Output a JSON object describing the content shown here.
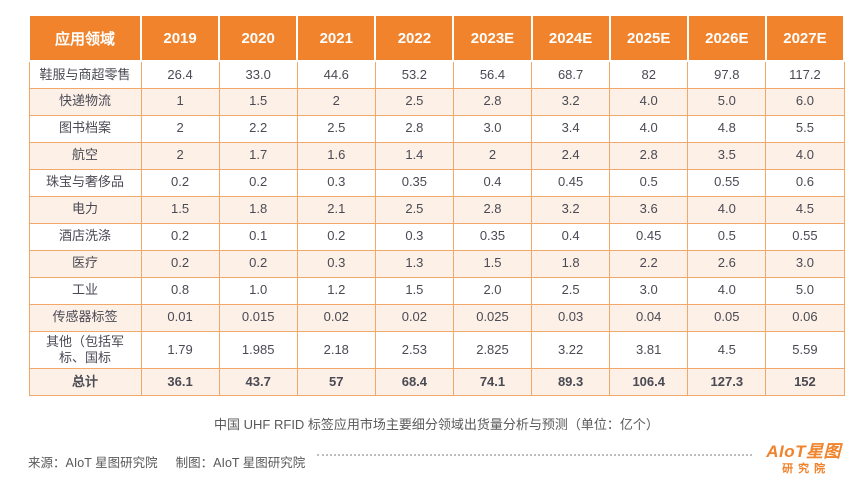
{
  "colors": {
    "header_orange": "#F0832C",
    "cell_border_orange": "#F2A76B",
    "alt_row_pink": "#FCF0E7",
    "cell_text": "#4A4A54",
    "logo_orange": "#F0832C"
  },
  "chart_data": {
    "type": "table",
    "title": "中国 UHF RFID 标签应用市场主要细分领域出货量分析与预测（单位：亿个）",
    "unit": "亿个",
    "columns": [
      "应用领域",
      "2019",
      "2020",
      "2021",
      "2022",
      "2023E",
      "2024E",
      "2025E",
      "2026E",
      "2027E"
    ],
    "rows": [
      {
        "label": "鞋服与商超零售",
        "values": [
          "26.4",
          "33.0",
          "44.6",
          "53.2",
          "56.4",
          "68.7",
          "82",
          "97.8",
          "117.2"
        ],
        "bold": false
      },
      {
        "label": "快递物流",
        "values": [
          "1",
          "1.5",
          "2",
          "2.5",
          "2.8",
          "3.2",
          "4.0",
          "5.0",
          "6.0"
        ],
        "bold": false
      },
      {
        "label": "图书档案",
        "values": [
          "2",
          "2.2",
          "2.5",
          "2.8",
          "3.0",
          "3.4",
          "4.0",
          "4.8",
          "5.5"
        ],
        "bold": false
      },
      {
        "label": "航空",
        "values": [
          "2",
          "1.7",
          "1.6",
          "1.4",
          "2",
          "2.4",
          "2.8",
          "3.5",
          "4.0"
        ],
        "bold": false
      },
      {
        "label": "珠宝与奢侈品",
        "values": [
          "0.2",
          "0.2",
          "0.3",
          "0.35",
          "0.4",
          "0.45",
          "0.5",
          "0.55",
          "0.6"
        ],
        "bold": false
      },
      {
        "label": "电力",
        "values": [
          "1.5",
          "1.8",
          "2.1",
          "2.5",
          "2.8",
          "3.2",
          "3.6",
          "4.0",
          "4.5"
        ],
        "bold": false
      },
      {
        "label": "酒店洗涤",
        "values": [
          "0.2",
          "0.1",
          "0.2",
          "0.3",
          "0.35",
          "0.4",
          "0.45",
          "0.5",
          "0.55"
        ],
        "bold": false
      },
      {
        "label": "医疗",
        "values": [
          "0.2",
          "0.2",
          "0.3",
          "1.3",
          "1.5",
          "1.8",
          "2.2",
          "2.6",
          "3.0"
        ],
        "bold": false
      },
      {
        "label": "工业",
        "values": [
          "0.8",
          "1.0",
          "1.2",
          "1.5",
          "2.0",
          "2.5",
          "3.0",
          "4.0",
          "5.0"
        ],
        "bold": false
      },
      {
        "label": "传感器标签",
        "values": [
          "0.01",
          "0.015",
          "0.02",
          "0.02",
          "0.025",
          "0.03",
          "0.04",
          "0.05",
          "0.06"
        ],
        "bold": false
      },
      {
        "label": "其他（包括军标、国标",
        "values": [
          "1.79",
          "1.985",
          "2.18",
          "2.53",
          "2.825",
          "3.22",
          "3.81",
          "4.5",
          "5.59"
        ],
        "bold": false
      },
      {
        "label": "总计",
        "values": [
          "36.1",
          "43.7",
          "57",
          "68.4",
          "74.1",
          "89.3",
          "106.4",
          "127.3",
          "152"
        ],
        "bold": true
      }
    ]
  },
  "footer": {
    "source": "来源：AIoT 星图研究院",
    "credit": "制图：AIoT 星图研究院"
  },
  "logo": {
    "line1": "AIoT星图",
    "line2": "研究院"
  }
}
